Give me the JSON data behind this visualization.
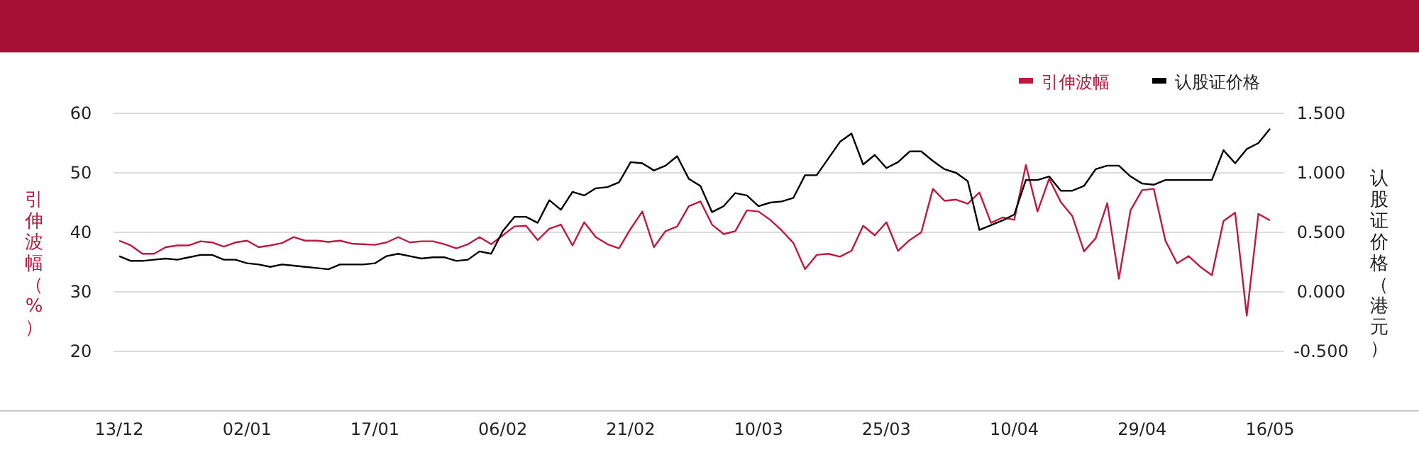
{
  "chart_data": {
    "type": "line",
    "ylabel": "引伸波幅（%）",
    "y2label": "认股证价格（港元）",
    "categories": [
      "13/12",
      null,
      null,
      null,
      null,
      null,
      null,
      null,
      null,
      null,
      null,
      "02/01",
      null,
      null,
      null,
      null,
      null,
      null,
      null,
      null,
      null,
      null,
      "17/01",
      null,
      null,
      null,
      null,
      null,
      null,
      null,
      null,
      null,
      null,
      "06/02",
      null,
      null,
      null,
      null,
      null,
      null,
      null,
      null,
      null,
      null,
      "21/02",
      null,
      null,
      null,
      null,
      null,
      null,
      null,
      null,
      null,
      null,
      "10/03",
      null,
      null,
      null,
      null,
      null,
      null,
      null,
      null,
      null,
      null,
      "25/03",
      null,
      null,
      null,
      null,
      null,
      null,
      null,
      null,
      null,
      null,
      "10/04",
      null,
      null,
      null,
      null,
      null,
      null,
      null,
      null,
      null,
      null,
      "29/04",
      null,
      null,
      null,
      null,
      null,
      null,
      null,
      null,
      null,
      null,
      "16/05"
    ],
    "series": [
      {
        "name": "引伸波幅",
        "color": "#c0193f",
        "values": [
          38.6,
          37.8,
          36.4,
          36.4,
          37.5,
          37.8,
          37.8,
          38.5,
          38.3,
          37.6,
          38.3,
          38.6,
          37.5,
          37.8,
          38.2,
          39.2,
          38.6,
          38.6,
          38.4,
          38.6,
          38.1,
          38.0,
          37.9,
          38.3,
          39.2,
          38.3,
          38.5,
          38.5,
          38.0,
          37.3,
          38.0,
          39.2,
          38.0,
          39.5,
          41.0,
          41.1,
          38.7,
          40.6,
          41.3,
          37.8,
          41.7,
          39.2,
          38.0,
          37.3,
          40.6,
          43.5,
          37.5,
          40.2,
          41.0,
          44.4,
          45.2,
          41.3,
          39.7,
          40.2,
          43.7,
          43.5,
          42.1,
          40.3,
          38.2,
          33.8,
          36.2,
          36.4,
          35.9,
          36.9,
          41.1,
          39.5,
          41.7,
          36.9,
          38.7,
          40.0,
          47.3,
          45.3,
          45.5,
          44.8,
          46.7,
          41.6,
          42.5,
          42.1,
          51.3,
          43.5,
          49.0,
          45.1,
          42.7,
          36.8,
          39.0,
          44.9,
          32.2,
          43.7,
          47.1,
          47.3,
          38.6,
          34.8,
          36.0,
          34.2,
          32.8,
          41.9,
          43.3,
          26.0,
          43.1,
          42.0
        ]
      },
      {
        "name": "认股证价格",
        "color": "#000000",
        "axis": "y2",
        "values": [
          0.3,
          0.26,
          0.26,
          0.27,
          0.28,
          0.27,
          0.29,
          0.31,
          0.31,
          0.27,
          0.27,
          0.24,
          0.23,
          0.21,
          0.23,
          0.22,
          0.21,
          0.2,
          0.19,
          0.23,
          0.23,
          0.23,
          0.24,
          0.3,
          0.32,
          0.3,
          0.28,
          0.29,
          0.29,
          0.26,
          0.27,
          0.34,
          0.32,
          0.51,
          0.63,
          0.63,
          0.58,
          0.77,
          0.69,
          0.84,
          0.81,
          0.87,
          0.88,
          0.92,
          1.09,
          1.08,
          1.02,
          1.06,
          1.14,
          0.95,
          0.89,
          0.67,
          0.72,
          0.83,
          0.81,
          0.72,
          0.75,
          0.76,
          0.79,
          0.98,
          0.98,
          1.12,
          1.26,
          1.33,
          1.07,
          1.15,
          1.04,
          1.09,
          1.18,
          1.18,
          1.1,
          1.03,
          1.0,
          0.93,
          0.52,
          0.56,
          0.6,
          0.65,
          0.94,
          0.94,
          0.97,
          0.85,
          0.85,
          0.89,
          1.03,
          1.06,
          1.06,
          0.97,
          0.91,
          0.9,
          0.94,
          0.94,
          0.94,
          0.94,
          0.94,
          1.19,
          1.08,
          1.2,
          1.25,
          1.37
        ]
      }
    ],
    "ylim": [
      10,
      60
    ],
    "yticks": [
      20,
      30,
      40,
      50,
      60
    ],
    "y2lim": [
      -1,
      1.5
    ],
    "y2ticks": [
      {
        "value": -0.5,
        "label": "-0.500"
      },
      {
        "value": 0,
        "label": "0.000"
      },
      {
        "value": 0.5,
        "label": "0.500"
      },
      {
        "value": 1,
        "label": "1.000"
      },
      {
        "value": 1.5,
        "label": "1.500"
      }
    ],
    "grid": "y",
    "legend": "top right",
    "marker": "none",
    "line_style": "solid"
  }
}
